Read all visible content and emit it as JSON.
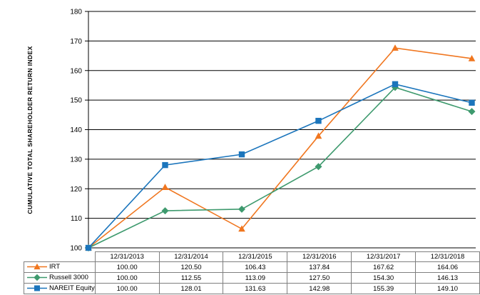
{
  "chart_data": {
    "type": "line",
    "title": "",
    "xlabel": "",
    "ylabel": "CUMULATIVE TOTAL SHAREHOLDER RETURN INDEX",
    "ylim": [
      100,
      180
    ],
    "ytick_step": 10,
    "grid": true,
    "gridline_color": "#000000",
    "table_border_color": "#7f7f7f",
    "legend_position": "data-table-left",
    "categories": [
      "12/31/2013",
      "12/31/2014",
      "12/31/2015",
      "12/31/2016",
      "12/31/2017",
      "12/31/2018"
    ],
    "series": [
      {
        "name": "IRT",
        "marker": "triangle",
        "color": "#F0761F",
        "values": [
          100.0,
          120.5,
          106.43,
          137.84,
          167.62,
          164.06
        ]
      },
      {
        "name": "Russell 3000",
        "marker": "diamond",
        "color": "#3E9A6E",
        "values": [
          100.0,
          112.55,
          113.09,
          127.5,
          154.3,
          146.13
        ]
      },
      {
        "name": "NAREIT Equity",
        "marker": "square",
        "color": "#1B75BC",
        "values": [
          100.0,
          128.01,
          131.63,
          142.98,
          155.39,
          149.1
        ]
      }
    ],
    "value_format": "2dp"
  }
}
